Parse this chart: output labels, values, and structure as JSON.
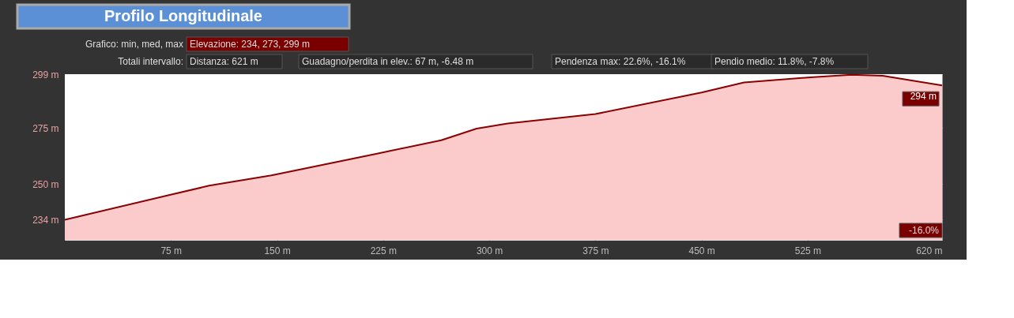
{
  "chart_data": {
    "type": "area",
    "title": "Profilo Longitudinale",
    "x": [
      0,
      73,
      102,
      146,
      220,
      266,
      291,
      313,
      375,
      450,
      480,
      527,
      556,
      578,
      620
    ],
    "series": [
      {
        "color": "#8b0000",
        "values": [
          234,
          244.9,
          249.2,
          253.8,
          263.4,
          269.5,
          274.7,
          277,
          281.2,
          290.8,
          295.3,
          297.6,
          298.7,
          298.3,
          294
        ]
      }
    ],
    "xlim": [
      0,
      620
    ],
    "xticks": [
      {
        "value": 75,
        "label": "75 m"
      },
      {
        "value": 150,
        "label": "150 m"
      },
      {
        "value": 225,
        "label": "225 m"
      },
      {
        "value": 300,
        "label": "300 m"
      },
      {
        "value": 375,
        "label": "375 m"
      },
      {
        "value": 450,
        "label": "450 m"
      },
      {
        "value": 525,
        "label": "525 m"
      },
      {
        "value": 620,
        "label": "620 m"
      }
    ],
    "ylim": [
      225,
      299
    ],
    "yticks": [
      {
        "value": 234,
        "label": "234 m"
      },
      {
        "value": 250,
        "label": "250 m"
      },
      {
        "value": 275,
        "label": "275 m"
      },
      {
        "value": 299,
        "label": "299 m"
      }
    ],
    "grid": true,
    "annotations": [
      "Grafico: min, med, max",
      "Elevazione: 234, 273, 299 m",
      "Totali intervallo:",
      "Distanza: 621 m",
      "Guadagno/perdita in elev.: 67 m, -6.48 m",
      "Pendenza max: 22.6%, -16.1%",
      "Pendio medio: 11.8%, -7.8%",
      "-16.0%",
      {
        "text": "294 m",
        "x": 620,
        "y": 294
      }
    ]
  }
}
